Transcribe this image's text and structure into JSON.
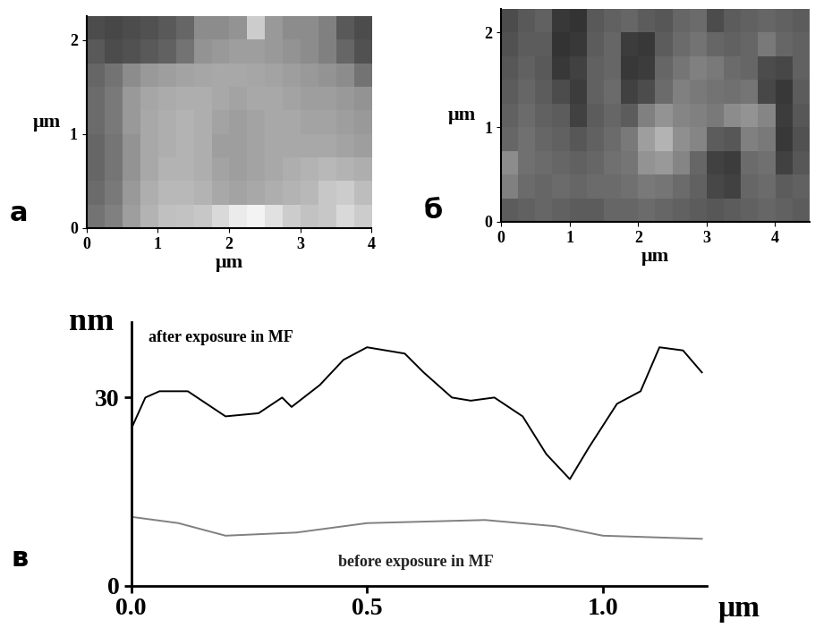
{
  "chart_data": [
    {
      "type": "heatmap",
      "panel_label": "а",
      "xlabel": "μm",
      "ylabel": "μm",
      "xlim": [
        0,
        4
      ],
      "ylim": [
        0,
        2.25
      ],
      "xticks": [
        0,
        1,
        2,
        3,
        4
      ],
      "yticks": [
        0,
        1,
        2
      ],
      "crange": [
        0,
        1
      ],
      "cells": [
        [
          0.3,
          0.28,
          0.3,
          0.32,
          0.35,
          0.4,
          0.55,
          0.55,
          0.58,
          0.8,
          0.6,
          0.55,
          0.55,
          0.5,
          0.35,
          0.3
        ],
        [
          0.35,
          0.3,
          0.32,
          0.35,
          0.38,
          0.45,
          0.58,
          0.6,
          0.62,
          0.62,
          0.6,
          0.58,
          0.55,
          0.5,
          0.4,
          0.32
        ],
        [
          0.4,
          0.45,
          0.55,
          0.6,
          0.62,
          0.64,
          0.65,
          0.66,
          0.66,
          0.65,
          0.64,
          0.62,
          0.6,
          0.58,
          0.55,
          0.45
        ],
        [
          0.42,
          0.48,
          0.6,
          0.65,
          0.67,
          0.68,
          0.68,
          0.66,
          0.64,
          0.66,
          0.66,
          0.64,
          0.62,
          0.62,
          0.6,
          0.58
        ],
        [
          0.42,
          0.48,
          0.6,
          0.66,
          0.68,
          0.7,
          0.68,
          0.64,
          0.62,
          0.64,
          0.66,
          0.66,
          0.64,
          0.64,
          0.62,
          0.6
        ],
        [
          0.4,
          0.46,
          0.58,
          0.66,
          0.68,
          0.7,
          0.68,
          0.62,
          0.62,
          0.64,
          0.66,
          0.66,
          0.66,
          0.66,
          0.64,
          0.62
        ],
        [
          0.4,
          0.46,
          0.58,
          0.66,
          0.7,
          0.7,
          0.68,
          0.64,
          0.62,
          0.64,
          0.66,
          0.68,
          0.7,
          0.72,
          0.7,
          0.68
        ],
        [
          0.42,
          0.48,
          0.6,
          0.68,
          0.72,
          0.72,
          0.7,
          0.66,
          0.64,
          0.66,
          0.68,
          0.7,
          0.72,
          0.78,
          0.8,
          0.74
        ],
        [
          0.45,
          0.5,
          0.62,
          0.7,
          0.75,
          0.76,
          0.78,
          0.85,
          0.92,
          0.95,
          0.88,
          0.8,
          0.76,
          0.78,
          0.85,
          0.8
        ]
      ]
    },
    {
      "type": "heatmap",
      "panel_label": "б",
      "xlabel": "μm",
      "ylabel": "μm",
      "xlim": [
        0,
        4.5
      ],
      "ylim": [
        0,
        2.25
      ],
      "xticks": [
        0,
        1,
        2,
        3,
        4
      ],
      "yticks": [
        0,
        1,
        2
      ],
      "crange": [
        0,
        1
      ],
      "cells": [
        [
          0.3,
          0.35,
          0.38,
          0.22,
          0.2,
          0.35,
          0.38,
          0.4,
          0.36,
          0.34,
          0.4,
          0.42,
          0.3,
          0.36,
          0.38,
          0.4,
          0.38,
          0.36
        ],
        [
          0.32,
          0.36,
          0.36,
          0.2,
          0.22,
          0.36,
          0.4,
          0.24,
          0.22,
          0.36,
          0.42,
          0.45,
          0.4,
          0.38,
          0.4,
          0.48,
          0.4,
          0.38
        ],
        [
          0.34,
          0.38,
          0.35,
          0.22,
          0.26,
          0.38,
          0.4,
          0.22,
          0.24,
          0.4,
          0.46,
          0.5,
          0.48,
          0.42,
          0.4,
          0.3,
          0.28,
          0.38
        ],
        [
          0.36,
          0.4,
          0.36,
          0.3,
          0.24,
          0.38,
          0.42,
          0.26,
          0.3,
          0.42,
          0.5,
          0.48,
          0.45,
          0.44,
          0.46,
          0.28,
          0.22,
          0.36
        ],
        [
          0.38,
          0.42,
          0.38,
          0.36,
          0.26,
          0.36,
          0.4,
          0.36,
          0.5,
          0.58,
          0.52,
          0.5,
          0.48,
          0.55,
          0.58,
          0.52,
          0.24,
          0.34
        ],
        [
          0.4,
          0.44,
          0.4,
          0.38,
          0.34,
          0.38,
          0.42,
          0.48,
          0.62,
          0.7,
          0.56,
          0.52,
          0.36,
          0.34,
          0.5,
          0.48,
          0.22,
          0.32
        ],
        [
          0.55,
          0.44,
          0.42,
          0.4,
          0.38,
          0.4,
          0.44,
          0.46,
          0.58,
          0.6,
          0.52,
          0.4,
          0.26,
          0.24,
          0.42,
          0.44,
          0.26,
          0.34
        ],
        [
          0.5,
          0.42,
          0.4,
          0.42,
          0.4,
          0.42,
          0.42,
          0.44,
          0.48,
          0.46,
          0.42,
          0.38,
          0.28,
          0.26,
          0.4,
          0.42,
          0.36,
          0.38
        ],
        [
          0.36,
          0.38,
          0.4,
          0.38,
          0.36,
          0.36,
          0.4,
          0.4,
          0.42,
          0.4,
          0.38,
          0.36,
          0.34,
          0.36,
          0.38,
          0.4,
          0.38,
          0.36
        ]
      ]
    },
    {
      "type": "line",
      "panel_label": "в",
      "xlabel": "μm",
      "ylabel": "nm",
      "xlim": [
        0,
        1.22
      ],
      "ylim": [
        0,
        42
      ],
      "xticks": [
        {
          "value": 0,
          "label": "0.0"
        },
        {
          "value": 0.5,
          "label": "0.5"
        },
        {
          "value": 1.0,
          "label": "1.0"
        }
      ],
      "yticks": [
        0,
        30
      ],
      "series": [
        {
          "name": "after exposure in MF",
          "color": "#000000",
          "x": [
            0,
            0.03,
            0.06,
            0.12,
            0.17,
            0.2,
            0.27,
            0.32,
            0.34,
            0.4,
            0.45,
            0.5,
            0.58,
            0.62,
            0.68,
            0.72,
            0.77,
            0.83,
            0.88,
            0.93,
            0.97,
            1.03,
            1.08,
            1.12,
            1.17,
            1.21
          ],
          "values": [
            25,
            30,
            31,
            31,
            28.5,
            27,
            27.5,
            30,
            28.5,
            32,
            36,
            38,
            37,
            34,
            30,
            29.5,
            30,
            27,
            21,
            17,
            22,
            29,
            31,
            38,
            37.5,
            34
          ]
        },
        {
          "name": "before exposure in MF",
          "color": "#808080",
          "x": [
            0,
            0.1,
            0.2,
            0.35,
            0.5,
            0.75,
            0.9,
            1.0,
            1.21
          ],
          "values": [
            11,
            10,
            8,
            8.5,
            10,
            10.5,
            9.5,
            8,
            7.5
          ]
        }
      ]
    }
  ]
}
